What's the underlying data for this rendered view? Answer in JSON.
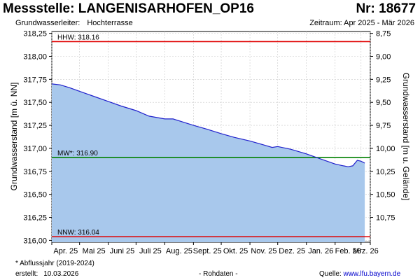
{
  "header": {
    "title": "Messstelle: LANGENISARHOFEN_OP16",
    "number": "Nr: 18677",
    "aquifer_label": "Grundwasserleiter:",
    "aquifer_value": "Hochterrasse",
    "period": "Zeitraum: Apr 2025 - Mär 2026"
  },
  "footer": {
    "note": "* Abflussjahr (2019-2024)",
    "created_label": "erstellt:",
    "created_date": "10.03.2026",
    "status": "- Rohdaten -",
    "source_label": "Quelle:",
    "source_url": "www.lfu.bayern.de"
  },
  "chart_data": {
    "type": "area",
    "ylabel": "Grundwasserstand [m ü. NN]",
    "y2label": "Grundwasserstand [m u. Gelände]",
    "ylim": [
      315.98,
      318.27
    ],
    "yticks": [
      "318,25",
      "318,00",
      "317,75",
      "317,50",
      "317,25",
      "317,00",
      "316,75",
      "316,50",
      "316,25",
      "316,00"
    ],
    "y2ticks": [
      "8,75",
      "9,00",
      "9,25",
      "9,50",
      "9,75",
      "10,00",
      "10,25",
      "10,50",
      "10,75"
    ],
    "y2_reference": 327.0,
    "xlim": [
      "2025-04-01",
      "2026-03-11"
    ],
    "xticks": [
      "Apr. 25",
      "Mai 25",
      "Juni 25",
      "Juli 25",
      "Aug. 25",
      "Sept. 25",
      "Okt. 25",
      "Nov. 25",
      "Dez. 25",
      "Jan. 26",
      "Feb. 26",
      "Mrz. 26"
    ],
    "fill_color": "#a8c8ec",
    "line_color": "#2020cc",
    "grid": true,
    "series": [
      {
        "x": [
          "2025-04-01",
          "2025-04-10",
          "2025-04-20",
          "2025-05-01",
          "2025-05-15",
          "2025-06-01",
          "2025-06-15",
          "2025-07-01",
          "2025-07-15",
          "2025-08-01",
          "2025-08-10",
          "2025-09-01",
          "2025-09-15",
          "2025-10-01",
          "2025-10-15",
          "2025-11-01",
          "2025-11-15",
          "2025-11-25",
          "2025-12-01",
          "2025-12-15",
          "2026-01-01",
          "2026-01-15",
          "2026-02-01",
          "2026-02-10",
          "2026-02-15",
          "2026-02-20",
          "2026-02-25",
          "2026-03-01",
          "2026-03-05"
        ],
        "values": [
          317.7,
          317.69,
          317.66,
          317.62,
          317.57,
          317.51,
          317.46,
          317.41,
          317.35,
          317.32,
          317.32,
          317.25,
          317.21,
          317.16,
          317.12,
          317.08,
          317.04,
          317.01,
          317.02,
          316.99,
          316.94,
          316.89,
          316.83,
          316.81,
          316.8,
          316.81,
          316.87,
          316.86,
          316.84
        ]
      }
    ],
    "reference_lines": [
      {
        "label": "HHW: 318.16",
        "value": 318.16,
        "color": "#e00000"
      },
      {
        "label": "MW*: 316.90",
        "value": 316.9,
        "color": "#008000"
      },
      {
        "label": "NNW: 316.04",
        "value": 316.04,
        "color": "#e00000"
      }
    ]
  }
}
